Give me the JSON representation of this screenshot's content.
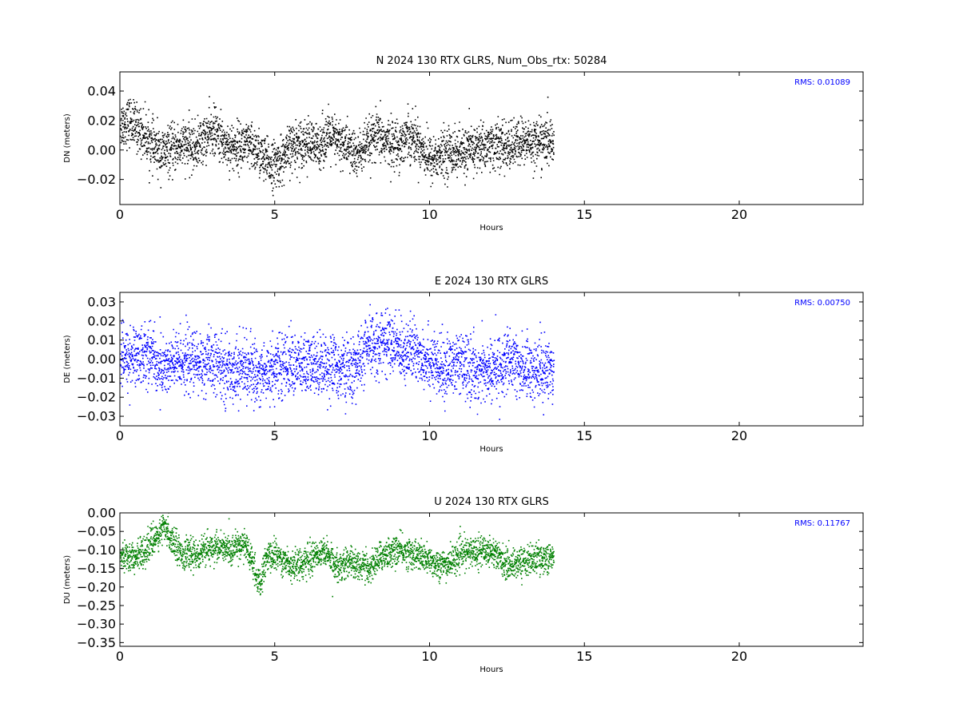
{
  "chart_data": [
    {
      "type": "scatter",
      "title": "N 2024 130 RTX  GLRS, Num_Obs_rtx: 50284",
      "xlabel": "Hours",
      "ylabel": "DN (meters)",
      "xlim": [
        0,
        24
      ],
      "ylim": [
        -0.037,
        0.053
      ],
      "xticks": [
        0,
        5,
        10,
        15,
        20
      ],
      "xtick_labels": [
        "0",
        "5",
        "10",
        "15",
        "20"
      ],
      "yticks": [
        -0.02,
        0.0,
        0.02,
        0.04
      ],
      "ytick_labels": [
        "−0.02",
        "0.00",
        "0.02",
        "0.04"
      ],
      "annotation": "RMS:  0.01089",
      "grid": false,
      "series": [
        {
          "color": "#000000",
          "x_range": [
            0,
            14
          ],
          "trend": [
            [
              0,
              0.018
            ],
            [
              0.3,
              0.02
            ],
            [
              0.5,
              0.016
            ],
            [
              0.8,
              0.01
            ],
            [
              1.0,
              0.004
            ],
            [
              1.3,
              -0.002
            ],
            [
              1.6,
              0.0
            ],
            [
              2.0,
              0.004
            ],
            [
              2.4,
              0.002
            ],
            [
              2.8,
              0.01
            ],
            [
              3.0,
              0.014
            ],
            [
              3.3,
              0.006
            ],
            [
              3.6,
              0.002
            ],
            [
              4.0,
              0.004
            ],
            [
              4.4,
              0.0
            ],
            [
              4.7,
              -0.008
            ],
            [
              5.0,
              -0.01
            ],
            [
              5.3,
              -0.004
            ],
            [
              5.6,
              0.004
            ],
            [
              6.0,
              0.006
            ],
            [
              6.3,
              0.002
            ],
            [
              6.7,
              0.01
            ],
            [
              7.0,
              0.006
            ],
            [
              7.3,
              0.004
            ],
            [
              7.6,
              -0.004
            ],
            [
              8.0,
              0.004
            ],
            [
              8.3,
              0.01
            ],
            [
              8.6,
              0.006
            ],
            [
              9.0,
              0.004
            ],
            [
              9.3,
              0.012
            ],
            [
              9.6,
              0.006
            ],
            [
              10.0,
              -0.006
            ],
            [
              10.3,
              -0.004
            ],
            [
              10.6,
              0.0
            ],
            [
              11.0,
              -0.002
            ],
            [
              11.5,
              0.002
            ],
            [
              12.0,
              0.004
            ],
            [
              12.5,
              0.002
            ],
            [
              13.0,
              0.006
            ],
            [
              13.5,
              0.006
            ],
            [
              14.0,
              0.006
            ]
          ],
          "spread": 0.008
        }
      ]
    },
    {
      "type": "scatter",
      "title": "E 2024 130 RTX  GLRS",
      "xlabel": "Hours",
      "ylabel": "DE (meters)",
      "xlim": [
        0,
        24
      ],
      "ylim": [
        -0.035,
        0.035
      ],
      "xticks": [
        0,
        5,
        10,
        15,
        20
      ],
      "xtick_labels": [
        "0",
        "5",
        "10",
        "15",
        "20"
      ],
      "yticks": [
        -0.03,
        -0.02,
        -0.01,
        0.0,
        0.01,
        0.02,
        0.03
      ],
      "ytick_labels": [
        "−0.03",
        "−0.02",
        "−0.01",
        "0.00",
        "0.01",
        "0.02",
        "0.03"
      ],
      "annotation": "RMS:  0.00750",
      "grid": false,
      "series": [
        {
          "color": "#0000ff",
          "x_range": [
            0,
            14
          ],
          "trend": [
            [
              0,
              0.0
            ],
            [
              0.5,
              0.002
            ],
            [
              1.0,
              0.004
            ],
            [
              1.2,
              -0.004
            ],
            [
              1.5,
              -0.004
            ],
            [
              2.0,
              0.0
            ],
            [
              2.5,
              -0.002
            ],
            [
              3.0,
              -0.002
            ],
            [
              3.5,
              -0.006
            ],
            [
              4.0,
              -0.004
            ],
            [
              4.5,
              -0.008
            ],
            [
              5.0,
              -0.004
            ],
            [
              5.5,
              -0.002
            ],
            [
              6.0,
              -0.004
            ],
            [
              6.5,
              -0.002
            ],
            [
              7.0,
              -0.004
            ],
            [
              7.5,
              -0.006
            ],
            [
              8.0,
              0.006
            ],
            [
              8.5,
              0.01
            ],
            [
              9.0,
              0.006
            ],
            [
              9.5,
              0.004
            ],
            [
              10.0,
              0.0
            ],
            [
              10.3,
              -0.006
            ],
            [
              10.8,
              -0.002
            ],
            [
              11.5,
              -0.006
            ],
            [
              12.0,
              -0.006
            ],
            [
              12.5,
              -0.002
            ],
            [
              13.0,
              -0.004
            ],
            [
              13.5,
              -0.006
            ],
            [
              14.0,
              -0.004
            ]
          ],
          "spread": 0.008
        }
      ]
    },
    {
      "type": "scatter",
      "title": "U 2024 130 RTX  GLRS",
      "xlabel": "Hours",
      "ylabel": "DU (meters)",
      "xlim": [
        0,
        24
      ],
      "ylim": [
        -0.36,
        0.0
      ],
      "xticks": [
        0,
        5,
        10,
        15,
        20
      ],
      "xtick_labels": [
        "0",
        "5",
        "10",
        "15",
        "20"
      ],
      "yticks": [
        -0.35,
        -0.3,
        -0.25,
        -0.2,
        -0.15,
        -0.1,
        -0.05,
        0.0
      ],
      "ytick_labels": [
        "−0.35",
        "−0.30",
        "−0.25",
        "−0.20",
        "−0.15",
        "−0.10",
        "−0.05",
        "0.00"
      ],
      "annotation": "RMS:  0.11767",
      "grid": false,
      "series": [
        {
          "color": "#008000",
          "x_range": [
            0,
            14
          ],
          "trend": [
            [
              0,
              -0.11
            ],
            [
              0.5,
              -0.12
            ],
            [
              1.0,
              -0.08
            ],
            [
              1.4,
              -0.04
            ],
            [
              1.6,
              -0.06
            ],
            [
              2.0,
              -0.11
            ],
            [
              2.5,
              -0.11
            ],
            [
              3.0,
              -0.09
            ],
            [
              3.5,
              -0.1
            ],
            [
              4.0,
              -0.08
            ],
            [
              4.3,
              -0.14
            ],
            [
              4.5,
              -0.2
            ],
            [
              4.7,
              -0.12
            ],
            [
              5.0,
              -0.11
            ],
            [
              5.5,
              -0.14
            ],
            [
              6.0,
              -0.13
            ],
            [
              6.5,
              -0.1
            ],
            [
              7.0,
              -0.14
            ],
            [
              7.5,
              -0.13
            ],
            [
              8.0,
              -0.15
            ],
            [
              8.5,
              -0.11
            ],
            [
              9.0,
              -0.1
            ],
            [
              9.5,
              -0.11
            ],
            [
              10.0,
              -0.13
            ],
            [
              10.5,
              -0.14
            ],
            [
              11.0,
              -0.11
            ],
            [
              11.5,
              -0.1
            ],
            [
              12.0,
              -0.1
            ],
            [
              12.5,
              -0.14
            ],
            [
              13.0,
              -0.13
            ],
            [
              13.5,
              -0.12
            ],
            [
              14.0,
              -0.12
            ]
          ],
          "spread": 0.02
        }
      ]
    }
  ]
}
